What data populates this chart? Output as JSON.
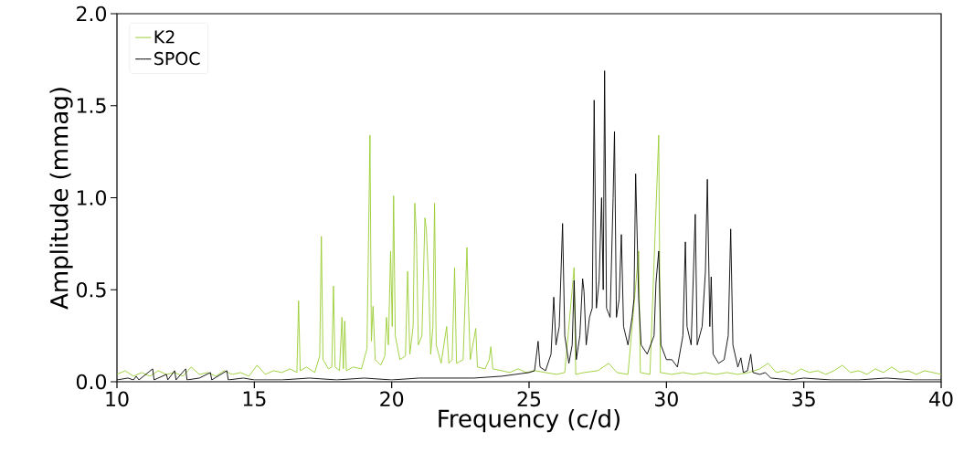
{
  "chart_data": {
    "type": "line",
    "xlabel": "Frequency (c/d)",
    "ylabel": "Amplitude (mmag)",
    "xlim": [
      10,
      40
    ],
    "xticks": [
      10,
      15,
      20,
      25,
      30,
      35,
      40
    ],
    "ylim": [
      0,
      2.0
    ],
    "yticks": [
      {
        "value": 0,
        "label": "0.0"
      },
      {
        "value": 0.5,
        "label": "0.5"
      },
      {
        "value": 1.0,
        "label": "1.0"
      },
      {
        "value": 1.5,
        "label": "1.5"
      },
      {
        "value": 2.0,
        "label": "2.0"
      }
    ],
    "legend": "top left",
    "grid": false,
    "marker": "none",
    "line_style": "solid",
    "series": [
      {
        "name": "K2",
        "color": "#9acd32",
        "x": [
          10.0,
          10.3,
          10.6,
          10.9,
          11.2,
          11.5,
          11.8,
          12.1,
          12.4,
          12.7,
          13.0,
          13.3,
          13.6,
          13.9,
          14.2,
          14.5,
          14.8,
          15.1,
          15.4,
          15.7,
          16.0,
          16.3,
          16.55,
          16.61,
          16.67,
          16.9,
          17.2,
          17.38,
          17.44,
          17.5,
          17.7,
          17.82,
          17.88,
          17.94,
          18.1,
          18.19,
          18.24,
          18.29,
          18.35,
          18.6,
          18.9,
          19.1,
          19.21,
          19.26,
          19.32,
          19.4,
          19.6,
          19.75,
          19.81,
          19.88,
          19.96,
          20.02,
          20.07,
          20.13,
          20.3,
          20.5,
          20.58,
          20.66,
          20.78,
          20.84,
          20.9,
          20.97,
          21.1,
          21.21,
          21.26,
          21.34,
          21.42,
          21.5,
          21.56,
          21.62,
          21.8,
          22.0,
          22.08,
          22.2,
          22.29,
          22.36,
          22.6,
          22.74,
          22.79,
          22.86,
          23.06,
          23.12,
          23.4,
          23.55,
          23.61,
          23.68,
          24.0,
          24.3,
          24.6,
          24.9,
          25.2,
          25.6,
          26.0,
          26.3,
          26.64,
          26.7,
          27.0,
          27.5,
          27.9,
          28.2,
          28.6,
          28.99,
          29.05,
          29.4,
          29.72,
          29.78,
          30.2,
          30.6,
          31.0,
          31.4,
          31.8,
          32.2,
          32.6,
          33.0,
          33.4,
          33.7,
          34.0,
          34.3,
          34.6,
          34.9,
          35.2,
          35.5,
          35.8,
          36.1,
          36.4,
          36.7,
          37.0,
          37.3,
          37.6,
          37.9,
          38.2,
          38.5,
          38.8,
          39.1,
          39.4,
          39.7,
          40.0
        ],
        "values": [
          0.04,
          0.06,
          0.03,
          0.05,
          0.03,
          0.06,
          0.04,
          0.05,
          0.03,
          0.08,
          0.04,
          0.05,
          0.03,
          0.06,
          0.04,
          0.05,
          0.03,
          0.09,
          0.04,
          0.06,
          0.05,
          0.07,
          0.05,
          0.44,
          0.06,
          0.08,
          0.05,
          0.14,
          0.79,
          0.12,
          0.07,
          0.08,
          0.52,
          0.08,
          0.06,
          0.35,
          0.07,
          0.33,
          0.06,
          0.08,
          0.07,
          0.18,
          1.34,
          0.22,
          0.41,
          0.12,
          0.09,
          0.14,
          0.35,
          0.2,
          0.71,
          0.3,
          1.01,
          0.25,
          0.12,
          0.14,
          0.6,
          0.15,
          0.3,
          0.97,
          0.8,
          0.2,
          0.25,
          0.89,
          0.83,
          0.56,
          0.15,
          0.3,
          0.97,
          0.2,
          0.1,
          0.3,
          0.1,
          0.12,
          0.62,
          0.1,
          0.12,
          0.73,
          0.43,
          0.12,
          0.29,
          0.08,
          0.07,
          0.12,
          0.19,
          0.07,
          0.06,
          0.05,
          0.07,
          0.05,
          0.06,
          0.05,
          0.04,
          0.05,
          0.62,
          0.04,
          0.05,
          0.06,
          0.1,
          0.05,
          0.04,
          0.71,
          0.05,
          0.04,
          1.34,
          0.05,
          0.04,
          0.05,
          0.04,
          0.05,
          0.04,
          0.05,
          0.04,
          0.05,
          0.07,
          0.1,
          0.05,
          0.06,
          0.04,
          0.07,
          0.05,
          0.06,
          0.04,
          0.06,
          0.09,
          0.05,
          0.06,
          0.04,
          0.07,
          0.05,
          0.08,
          0.05,
          0.06,
          0.04,
          0.06,
          0.05,
          0.04
        ]
      },
      {
        "name": "SPOC",
        "color": "#000000",
        "x": [
          10.0,
          10.4,
          10.6,
          10.7,
          10.8,
          11.3,
          11.35,
          11.8,
          11.85,
          12.1,
          12.15,
          12.5,
          12.55,
          13.0,
          13.4,
          13.45,
          14.0,
          14.05,
          14.6,
          15.0,
          16.0,
          17.0,
          18.0,
          19.0,
          20.0,
          21.0,
          22.0,
          23.0,
          24.0,
          24.5,
          25.0,
          25.2,
          25.33,
          25.4,
          25.6,
          25.8,
          25.9,
          25.98,
          26.1,
          26.22,
          26.3,
          26.45,
          26.57,
          26.64,
          26.72,
          26.85,
          26.95,
          27.0,
          27.08,
          27.2,
          27.3,
          27.37,
          27.45,
          27.55,
          27.64,
          27.7,
          27.75,
          27.82,
          27.95,
          28.06,
          28.11,
          28.18,
          28.28,
          28.36,
          28.44,
          28.6,
          28.75,
          28.82,
          28.88,
          28.99,
          29.08,
          29.3,
          29.55,
          29.62,
          29.72,
          29.8,
          30.0,
          30.2,
          30.4,
          30.6,
          30.69,
          30.75,
          30.9,
          31.05,
          31.12,
          31.3,
          31.42,
          31.49,
          31.58,
          31.63,
          31.7,
          31.9,
          32.1,
          32.25,
          32.34,
          32.42,
          32.6,
          32.71,
          32.8,
          32.95,
          33.07,
          33.15,
          33.4,
          33.6,
          33.8,
          34.5,
          35.0,
          36.0,
          37.0,
          38.0,
          39.0,
          40.0
        ],
        "values": [
          0.01,
          0.02,
          0.01,
          0.03,
          0.01,
          0.07,
          0.01,
          0.04,
          0.01,
          0.06,
          0.01,
          0.07,
          0.01,
          0.02,
          0.05,
          0.01,
          0.06,
          0.01,
          0.02,
          0.01,
          0.01,
          0.02,
          0.01,
          0.02,
          0.01,
          0.02,
          0.02,
          0.02,
          0.03,
          0.04,
          0.05,
          0.06,
          0.22,
          0.08,
          0.06,
          0.15,
          0.46,
          0.2,
          0.3,
          0.86,
          0.25,
          0.1,
          0.2,
          0.55,
          0.12,
          0.25,
          0.56,
          0.49,
          0.2,
          0.35,
          0.4,
          1.53,
          0.4,
          0.55,
          1.0,
          0.5,
          1.69,
          0.4,
          0.35,
          1.0,
          1.36,
          0.35,
          0.45,
          0.8,
          0.3,
          0.2,
          0.35,
          0.45,
          1.13,
          0.45,
          0.2,
          0.15,
          0.25,
          0.54,
          0.71,
          0.2,
          0.12,
          0.12,
          0.08,
          0.25,
          0.76,
          0.3,
          0.2,
          0.91,
          0.2,
          0.3,
          0.6,
          1.1,
          0.3,
          0.57,
          0.15,
          0.1,
          0.12,
          0.25,
          0.83,
          0.2,
          0.08,
          0.13,
          0.05,
          0.06,
          0.15,
          0.05,
          0.04,
          0.05,
          0.02,
          0.01,
          0.02,
          0.01,
          0.01,
          0.02,
          0.01,
          0.01
        ]
      }
    ]
  }
}
